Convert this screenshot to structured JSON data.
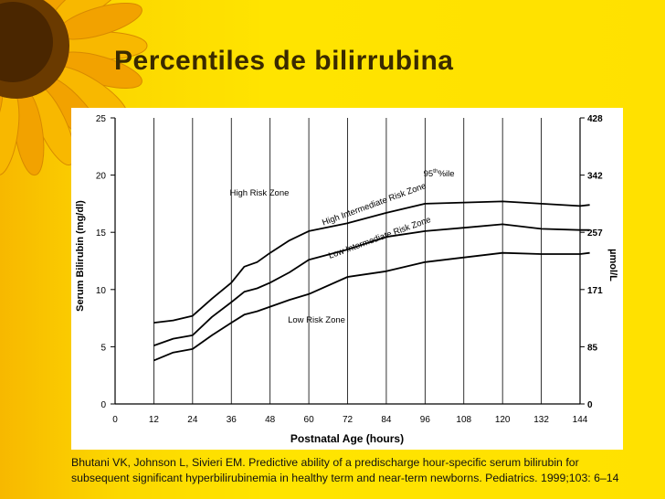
{
  "slide": {
    "title": "Percentiles de bilirrubina",
    "citation_line1": "Bhutani VK, Johnson L, Sivieri EM. Predictive ability of a predischarge hour-specific serum bilirubin for",
    "citation_line2": "subsequent significant hyperbilirubinemia in healthy term and near-term newborns. Pediatrics. 1999;103: 6–14",
    "colors": {
      "background": "#ffe100",
      "title": "#3a2a00",
      "petal": "#f5a800",
      "seed": "#5a3200"
    }
  },
  "chart_data": {
    "type": "line",
    "title": "",
    "xlabel": "Postnatal Age (hours)",
    "ylabel": "Serum Bilirubin (mg/dl)",
    "y2label": "µmol/L",
    "xlim": [
      0,
      144
    ],
    "ylim": [
      0,
      25
    ],
    "x_ticks": [
      0,
      12,
      24,
      36,
      48,
      60,
      72,
      84,
      96,
      108,
      120,
      132,
      144
    ],
    "y_ticks": [
      0,
      5,
      10,
      15,
      20,
      25
    ],
    "y2_ticks": [
      {
        "label": "428",
        "at": 25
      },
      {
        "label": "342",
        "at": 20
      },
      {
        "label": "257",
        "at": 15
      },
      {
        "label": "171",
        "at": 10
      },
      {
        "label": "85",
        "at": 5
      },
      {
        "label": "0",
        "at": 0
      }
    ],
    "vertical_grid": true,
    "horizontal_grid": false,
    "series": [
      {
        "points": [
          [
            12,
            7.1
          ],
          [
            18,
            7.3
          ],
          [
            24,
            7.7
          ],
          [
            30,
            9.2
          ],
          [
            36,
            10.6
          ],
          [
            40,
            12.0
          ],
          [
            44,
            12.4
          ],
          [
            48,
            13.2
          ],
          [
            54,
            14.3
          ],
          [
            60,
            15.1
          ],
          [
            72,
            15.8
          ],
          [
            84,
            16.7
          ],
          [
            96,
            17.5
          ],
          [
            108,
            17.6
          ],
          [
            120,
            17.7
          ],
          [
            132,
            17.5
          ],
          [
            144,
            17.3
          ],
          [
            147,
            17.4
          ]
        ]
      },
      {
        "points": [
          [
            12,
            5.1
          ],
          [
            18,
            5.7
          ],
          [
            24,
            6.0
          ],
          [
            30,
            7.6
          ],
          [
            36,
            8.9
          ],
          [
            40,
            9.8
          ],
          [
            44,
            10.1
          ],
          [
            48,
            10.6
          ],
          [
            54,
            11.5
          ],
          [
            60,
            12.6
          ],
          [
            72,
            13.5
          ],
          [
            84,
            14.6
          ],
          [
            96,
            15.1
          ],
          [
            108,
            15.4
          ],
          [
            120,
            15.7
          ],
          [
            132,
            15.3
          ],
          [
            144,
            15.2
          ],
          [
            147,
            15.2
          ]
        ]
      },
      {
        "points": [
          [
            12,
            3.8
          ],
          [
            18,
            4.5
          ],
          [
            24,
            4.8
          ],
          [
            30,
            6.0
          ],
          [
            36,
            7.1
          ],
          [
            40,
            7.8
          ],
          [
            44,
            8.1
          ],
          [
            48,
            8.5
          ],
          [
            54,
            9.1
          ],
          [
            60,
            9.6
          ],
          [
            72,
            11.1
          ],
          [
            84,
            11.6
          ],
          [
            96,
            12.4
          ],
          [
            108,
            12.8
          ],
          [
            120,
            13.2
          ],
          [
            132,
            13.1
          ],
          [
            144,
            13.1
          ],
          [
            147,
            13.2
          ]
        ]
      }
    ],
    "annotations": [
      {
        "text": "High Risk Zone",
        "x": 35.5,
        "y": 18.2,
        "angle": 0
      },
      {
        "text": "High Intermediate Risk Zone",
        "x": 64.5,
        "y": 15.6,
        "angle": -20
      },
      {
        "text": "Low Intermediate Risk Zone",
        "x": 66.5,
        "y": 12.7,
        "angle": -20
      },
      {
        "text": "Low Risk Zone",
        "x": 53.5,
        "y": 7.1,
        "angle": 0
      },
      {
        "text": "95",
        "sup": "th",
        "text2": "%ile",
        "x": 95.5,
        "y": 19.9,
        "angle": 0
      }
    ]
  }
}
